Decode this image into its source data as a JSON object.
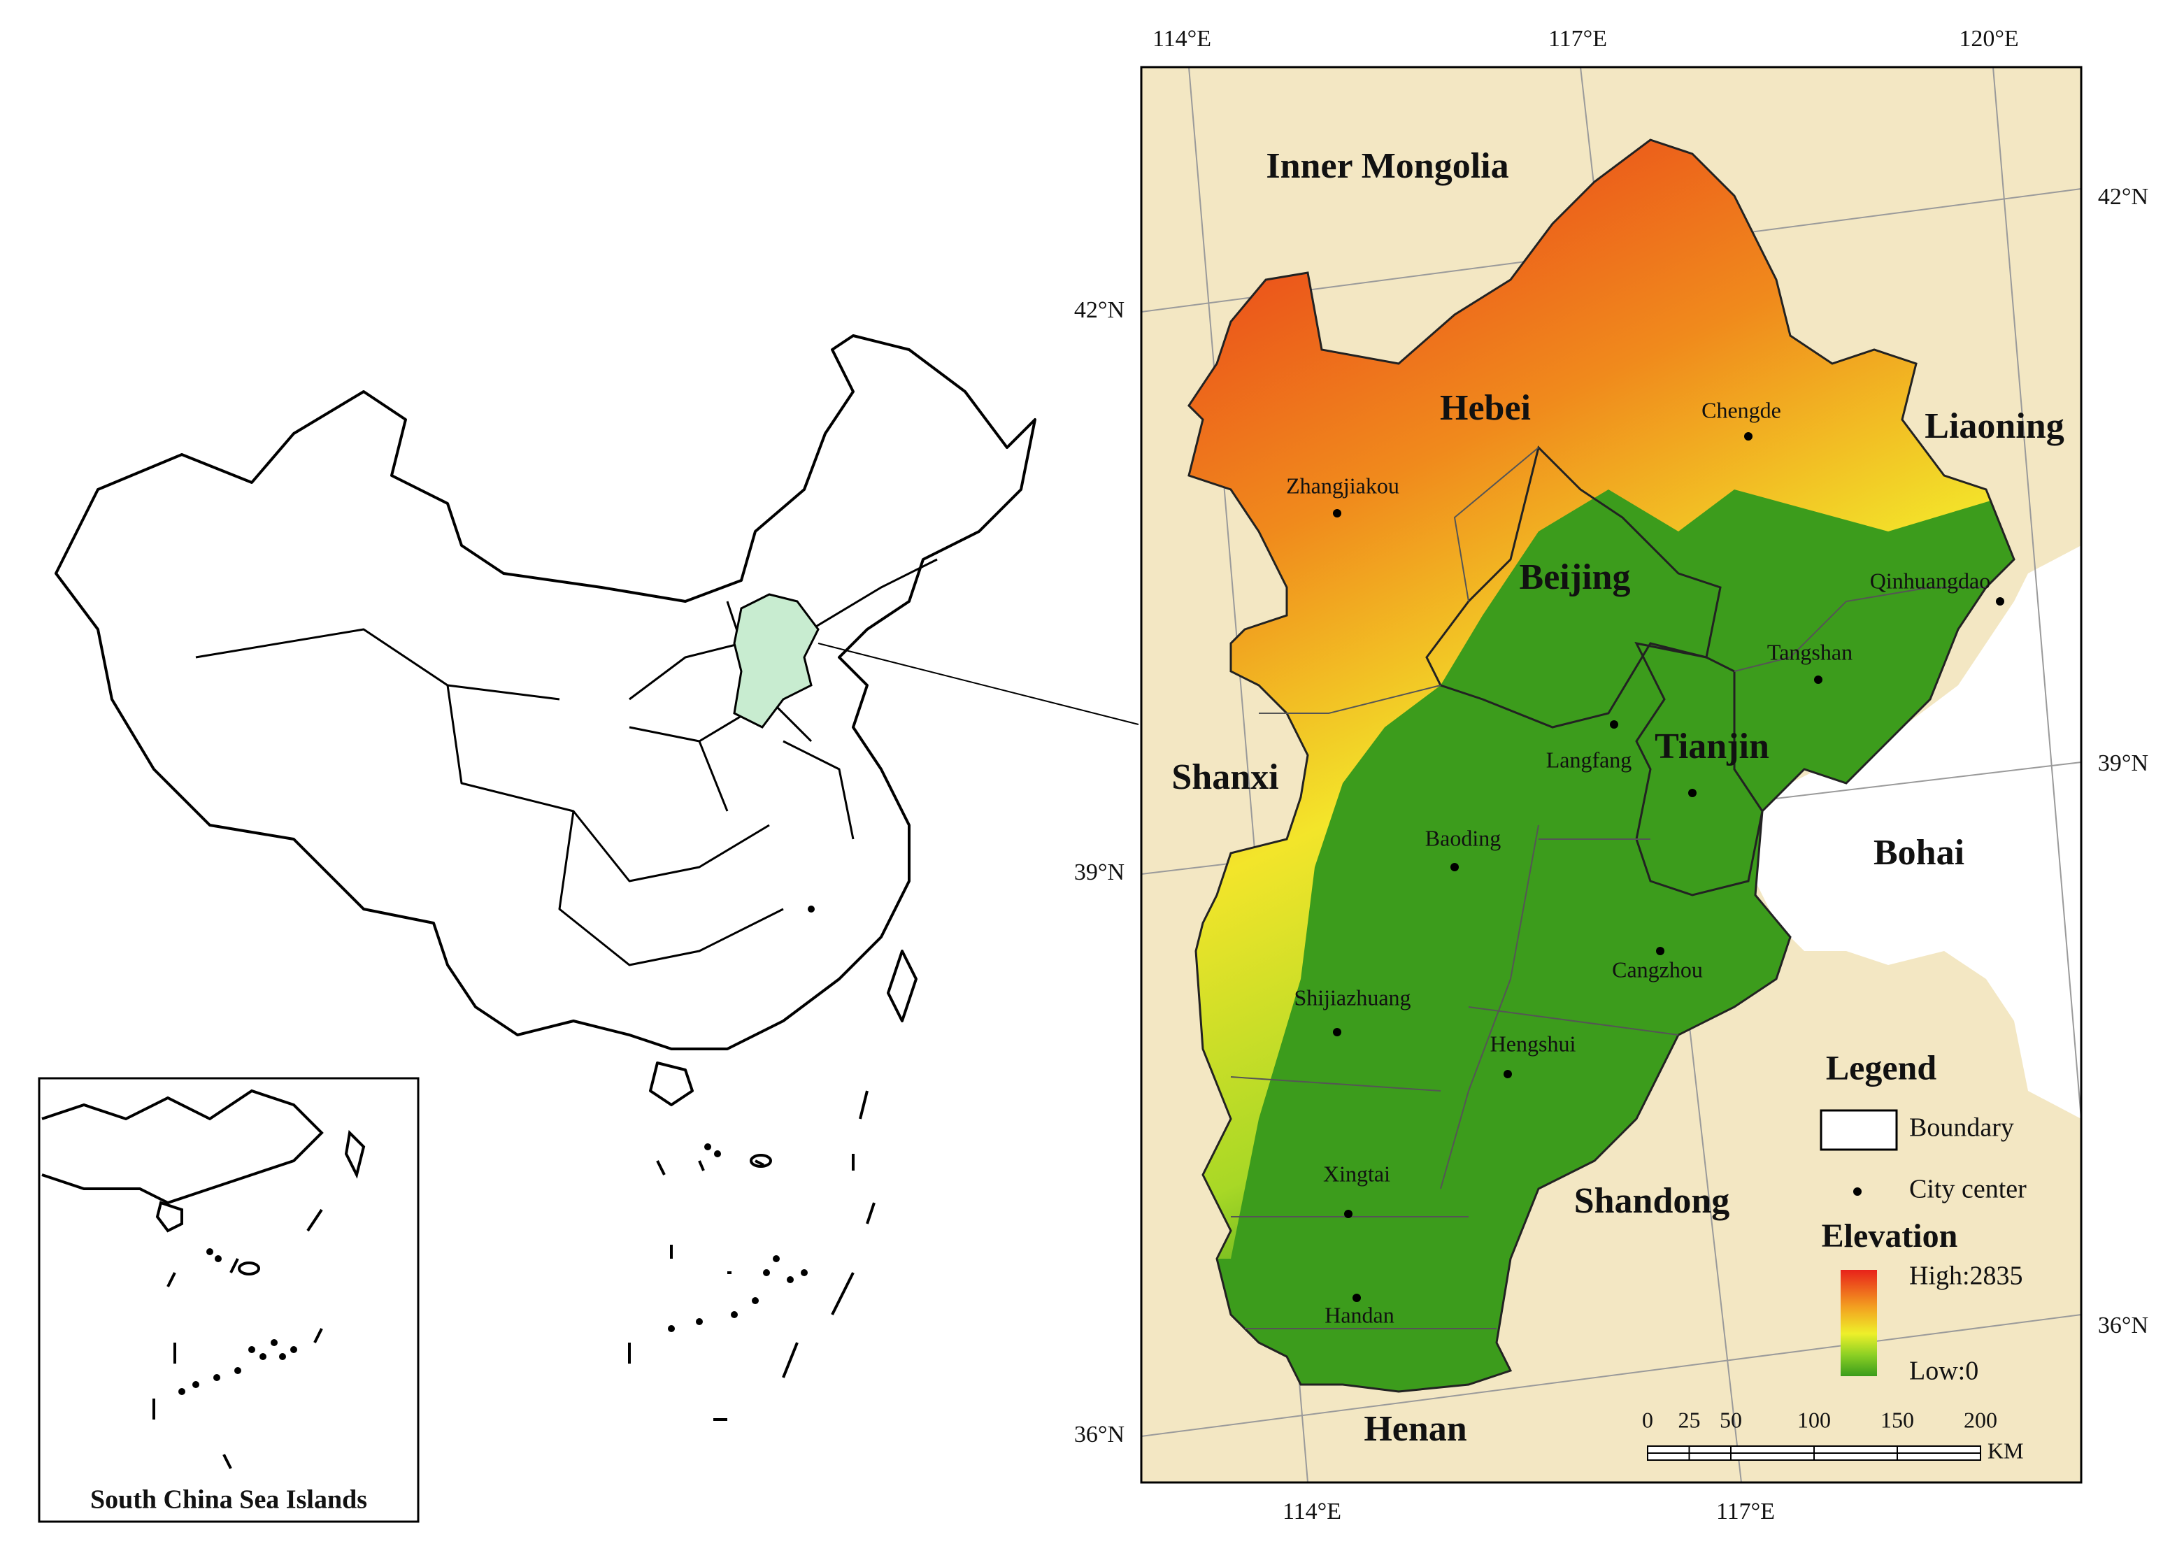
{
  "map": {
    "top_labels": [
      "114°E",
      "117°E",
      "120°E"
    ],
    "bottom_labels": [
      "114°E",
      "117°E"
    ],
    "left_labels": [
      "42°N",
      "39°N",
      "36°N"
    ],
    "right_labels": [
      "42°N",
      "39°N",
      "36°N"
    ],
    "regions": [
      "Inner Mongolia",
      "Hebei",
      "Liaoning",
      "Beijing",
      "Tianjin",
      "Shanxi",
      "Bohai",
      "Shandong",
      "Henan"
    ],
    "cities": [
      "Chengde",
      "Zhangjiakou",
      "Qinhuangdao",
      "Tangshan",
      "Langfang",
      "Baoding",
      "Cangzhou",
      "Shijiazhuang",
      "Hengshui",
      "Xingtai",
      "Handan"
    ],
    "legend": {
      "title": "Legend",
      "boundary": "Boundary",
      "city_center": "City center",
      "elevation_title": "Elevation",
      "high": "High:2835",
      "low": "Low:0"
    },
    "scale_bar": {
      "ticks": [
        0,
        25,
        50,
        100,
        150,
        200
      ],
      "unit": "KM"
    },
    "inset_title": "South China Sea Islands"
  }
}
